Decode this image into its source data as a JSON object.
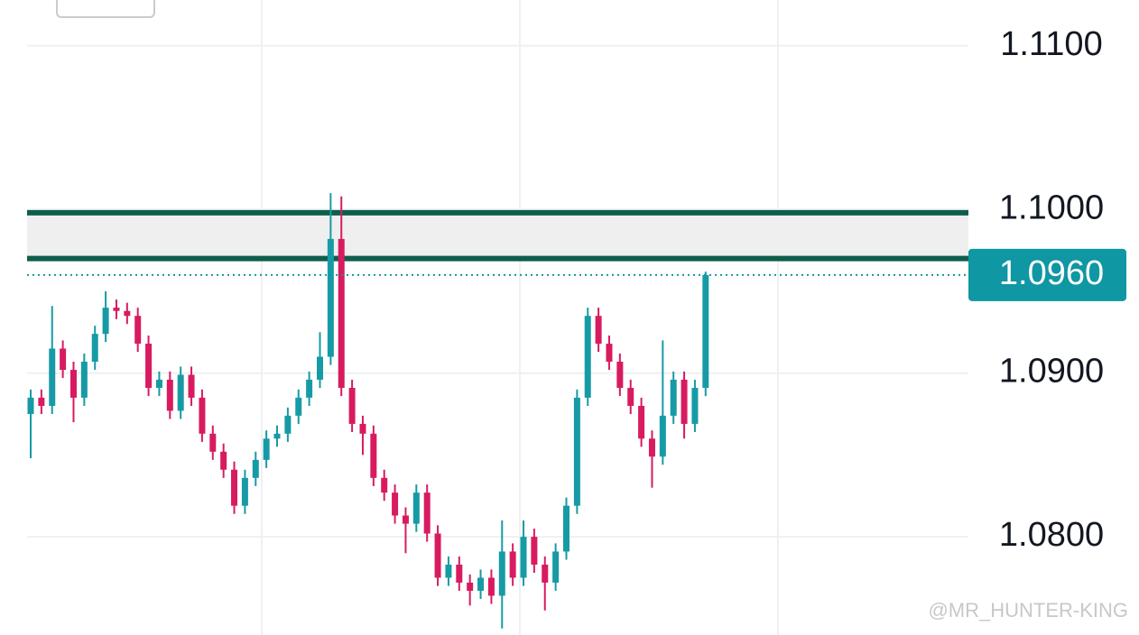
{
  "chart_data": {
    "type": "candlestick",
    "ylim": [
      1.074,
      1.1128
    ],
    "yticks": [
      {
        "value": 1.08,
        "label": "1.0800"
      },
      {
        "value": 1.09,
        "label": "1.0900"
      },
      {
        "value": 1.1,
        "label": "1.1000"
      },
      {
        "value": 1.11,
        "label": "1.1100"
      }
    ],
    "grid": true,
    "up_color": "#169ba6",
    "down_color": "#d81b60",
    "open": [
      1.0875,
      1.0885,
      1.088,
      1.0915,
      1.0902,
      1.0885,
      1.0907,
      1.0924,
      1.094,
      1.0938,
      1.0935,
      1.0918,
      1.0891,
      1.0896,
      1.0877,
      1.0899,
      1.0885,
      1.0863,
      1.0852,
      1.0841,
      1.0819,
      1.0836,
      1.0847,
      1.086,
      1.0863,
      1.0874,
      1.0885,
      1.0896,
      1.091,
      1.0982,
      1.0891,
      1.0869,
      1.0863,
      1.0836,
      1.0827,
      1.0813,
      1.0808,
      1.0827,
      1.0802,
      1.0775,
      1.0783,
      1.0772,
      1.0767,
      1.0775,
      1.0764,
      1.0791,
      1.0775,
      1.08,
      1.0783,
      1.0772,
      1.0791,
      1.0819,
      1.0885,
      1.0935,
      1.0918,
      1.0907,
      1.0891,
      1.088,
      1.086,
      1.0849,
      1.0874,
      1.0896,
      1.0869,
      1.0891
    ],
    "high": [
      1.089,
      1.089,
      1.0941,
      1.092,
      1.0907,
      1.0912,
      1.0929,
      1.095,
      1.0945,
      1.0943,
      1.094,
      1.0923,
      1.0901,
      1.0901,
      1.0904,
      1.0904,
      1.089,
      1.0868,
      1.0857,
      1.0846,
      1.0841,
      1.0852,
      1.0865,
      1.0868,
      1.0879,
      1.089,
      1.0901,
      1.0925,
      1.101,
      1.1008,
      1.0896,
      1.0874,
      1.0868,
      1.0841,
      1.0832,
      1.0818,
      1.0832,
      1.0832,
      1.0807,
      1.0788,
      1.0788,
      1.0777,
      1.078,
      1.078,
      1.081,
      1.0796,
      1.081,
      1.0805,
      1.0788,
      1.0796,
      1.0824,
      1.089,
      1.094,
      1.094,
      1.0923,
      1.0912,
      1.0896,
      1.0885,
      1.0865,
      1.092,
      1.0901,
      1.0901,
      1.0896,
      1.0962
    ],
    "low": [
      1.0848,
      1.0875,
      1.0875,
      1.0897,
      1.087,
      1.088,
      1.0902,
      1.0919,
      1.0933,
      1.093,
      1.0913,
      1.0886,
      1.0886,
      1.0872,
      1.0872,
      1.088,
      1.0858,
      1.0847,
      1.0836,
      1.0814,
      1.0814,
      1.0831,
      1.0842,
      1.0855,
      1.0858,
      1.0869,
      1.088,
      1.0891,
      1.0905,
      1.0886,
      1.0864,
      1.085,
      1.0831,
      1.0822,
      1.0808,
      1.079,
      1.0803,
      1.0797,
      1.077,
      1.077,
      1.0767,
      1.0758,
      1.0762,
      1.0759,
      1.0744,
      1.077,
      1.077,
      1.0778,
      1.0755,
      1.0767,
      1.0786,
      1.0814,
      1.088,
      1.0913,
      1.0902,
      1.0886,
      1.0875,
      1.0855,
      1.083,
      1.0844,
      1.0869,
      1.086,
      1.0864,
      1.0886
    ],
    "close": [
      1.0885,
      1.088,
      1.0915,
      1.0902,
      1.0885,
      1.0907,
      1.0924,
      1.094,
      1.0938,
      1.0935,
      1.0918,
      1.0891,
      1.0896,
      1.0877,
      1.0899,
      1.0885,
      1.0863,
      1.0852,
      1.0841,
      1.0819,
      1.0836,
      1.0847,
      1.086,
      1.0863,
      1.0874,
      1.0885,
      1.0896,
      1.091,
      1.0982,
      1.0891,
      1.0869,
      1.0863,
      1.0836,
      1.0827,
      1.0813,
      1.0808,
      1.0827,
      1.0802,
      1.0775,
      1.0783,
      1.0772,
      1.0767,
      1.0775,
      1.0764,
      1.0791,
      1.0775,
      1.08,
      1.0783,
      1.0772,
      1.0791,
      1.0819,
      1.0885,
      1.0935,
      1.0918,
      1.0907,
      1.0891,
      1.088,
      1.086,
      1.0849,
      1.0874,
      1.0896,
      1.0869,
      1.0891,
      1.096
    ],
    "zone": [
      1.097,
      1.0998
    ],
    "zone_color": "#0d5e4c",
    "last_price": {
      "value": 1.096,
      "label": "1.0960"
    },
    "last_price_color": "#0f97a3",
    "watermark": "@MR_HUNTER-KING"
  }
}
